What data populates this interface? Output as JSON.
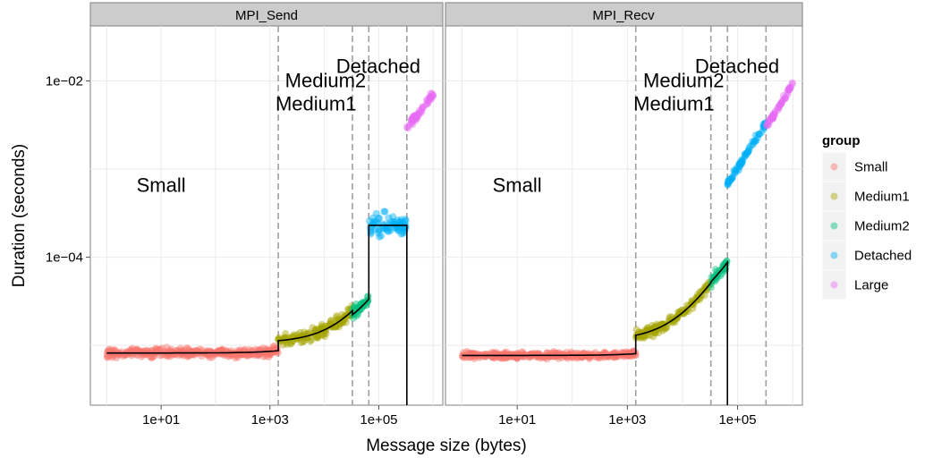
{
  "chart_data": {
    "type": "scatter",
    "xlabel": "Message size (bytes)",
    "ylabel": "Duration (seconds)",
    "x_scale": "log10",
    "y_scale": "log10",
    "xlim": [
      0.5,
      1500000
    ],
    "ylim": [
      2.1e-06,
      0.042
    ],
    "x_ticks": [
      10,
      1000,
      100000
    ],
    "x_tick_labels": [
      "1e+01",
      "1e+03",
      "1e+05"
    ],
    "y_ticks": [
      0.0001,
      0.01
    ],
    "y_tick_labels": [
      "1e−04",
      "1e−02"
    ],
    "grid": true,
    "legend": {
      "title": "group",
      "position": "right",
      "entries": [
        {
          "label": "Small",
          "color": "#F8766D"
        },
        {
          "label": "Medium1",
          "color": "#A3A500"
        },
        {
          "label": "Medium2",
          "color": "#00BF7D"
        },
        {
          "label": "Detached",
          "color": "#00B0F6"
        },
        {
          "label": "Large",
          "color": "#E76BF3"
        }
      ]
    },
    "panels": [
      {
        "title": "MPI_Send",
        "breakpoints": [
          1420,
          32768,
          65536,
          327680
        ],
        "region_labels": [
          {
            "text": "Small",
            "x": 10,
            "y": 0.00055
          },
          {
            "text": "Medium1",
            "x": 7000,
            "y": 0.0046
          },
          {
            "text": "Medium2",
            "x": 10500,
            "y": 0.0085
          },
          {
            "text": "Detached",
            "x": 98000,
            "y": 0.0123
          }
        ],
        "point_groups": [
          {
            "group": "Small",
            "x_range": [
              1,
              1420
            ],
            "y_base": 8.2e-06,
            "y_slope": 3.7e-10,
            "scatter": 0.035
          },
          {
            "group": "Medium1",
            "x_range": [
              1420,
              32768
            ],
            "y_base": 1.07e-05,
            "y_slope": 4.3e-10,
            "scatter": 0.05
          },
          {
            "group": "Medium2",
            "x_range": [
              32768,
              65536
            ],
            "y_base": 1.11e-05,
            "y_slope": 3.4e-10,
            "scatter": 0.05
          },
          {
            "group": "Detached",
            "x_range": [
              65536,
              327680
            ],
            "y_base": 0.00023,
            "y_slope": 0,
            "scatter": 0.09
          },
          {
            "group": "Large",
            "x_range": [
              327680,
              1000000
            ],
            "y_base": 0.00083,
            "y_slope": 6.4e-09,
            "scatter": 0.03
          }
        ],
        "fit_segments": [
          {
            "x_range": [
              1,
              1420
            ],
            "y_base": 8.2e-06,
            "y_slope": 3.7e-10
          },
          {
            "x_range": [
              1420,
              32768
            ],
            "y_base": 1.07e-05,
            "y_slope": 4.3e-10
          },
          {
            "x_range": [
              32768,
              65536
            ],
            "y_base": 1.11e-05,
            "y_slope": 3.4e-10
          },
          {
            "x_range": [
              65536,
              327680
            ],
            "y_base": 0.00023,
            "y_slope": 0
          }
        ]
      },
      {
        "title": "MPI_Recv",
        "breakpoints": [
          1420,
          32768,
          65536,
          327680
        ],
        "region_labels": [
          {
            "text": "Small",
            "x": 10,
            "y": 0.00055
          },
          {
            "text": "Medium1",
            "x": 7000,
            "y": 0.0046
          },
          {
            "text": "Medium2",
            "x": 10500,
            "y": 0.0085
          },
          {
            "text": "Detached",
            "x": 98000,
            "y": 0.0123
          }
        ],
        "point_groups": [
          {
            "group": "Small",
            "x_range": [
              1,
              1420
            ],
            "y_base": 7.7e-06,
            "y_slope": 2.5e-10,
            "scatter": 0.025
          },
          {
            "group": "Medium1",
            "x_range": [
              1420,
              32768
            ],
            "y_base": 1.13e-05,
            "y_slope": 1.22e-09,
            "scatter": 0.04
          },
          {
            "group": "Medium2",
            "x_range": [
              32768,
              65536
            ],
            "y_base": 1.75e-05,
            "y_slope": 1.07e-09,
            "scatter": 0.04
          },
          {
            "group": "Detached",
            "x_range": [
              65536,
              327680
            ],
            "y_base": 1e-07,
            "y_slope": 1.02e-08,
            "scatter": 0.025
          },
          {
            "group": "Large",
            "x_range": [
              327680,
              1000000
            ],
            "y_base": 1e-07,
            "y_slope": 9.2e-09,
            "scatter": 0.02
          }
        ],
        "fit_segments": [
          {
            "x_range": [
              1,
              1420
            ],
            "y_base": 7.7e-06,
            "y_slope": 2.5e-10
          },
          {
            "x_range": [
              1420,
              32768
            ],
            "y_base": 1.13e-05,
            "y_slope": 1.22e-09
          },
          {
            "x_range": [
              32768,
              65536
            ],
            "y_base": 1.75e-05,
            "y_slope": 1.07e-09
          }
        ]
      }
    ]
  }
}
